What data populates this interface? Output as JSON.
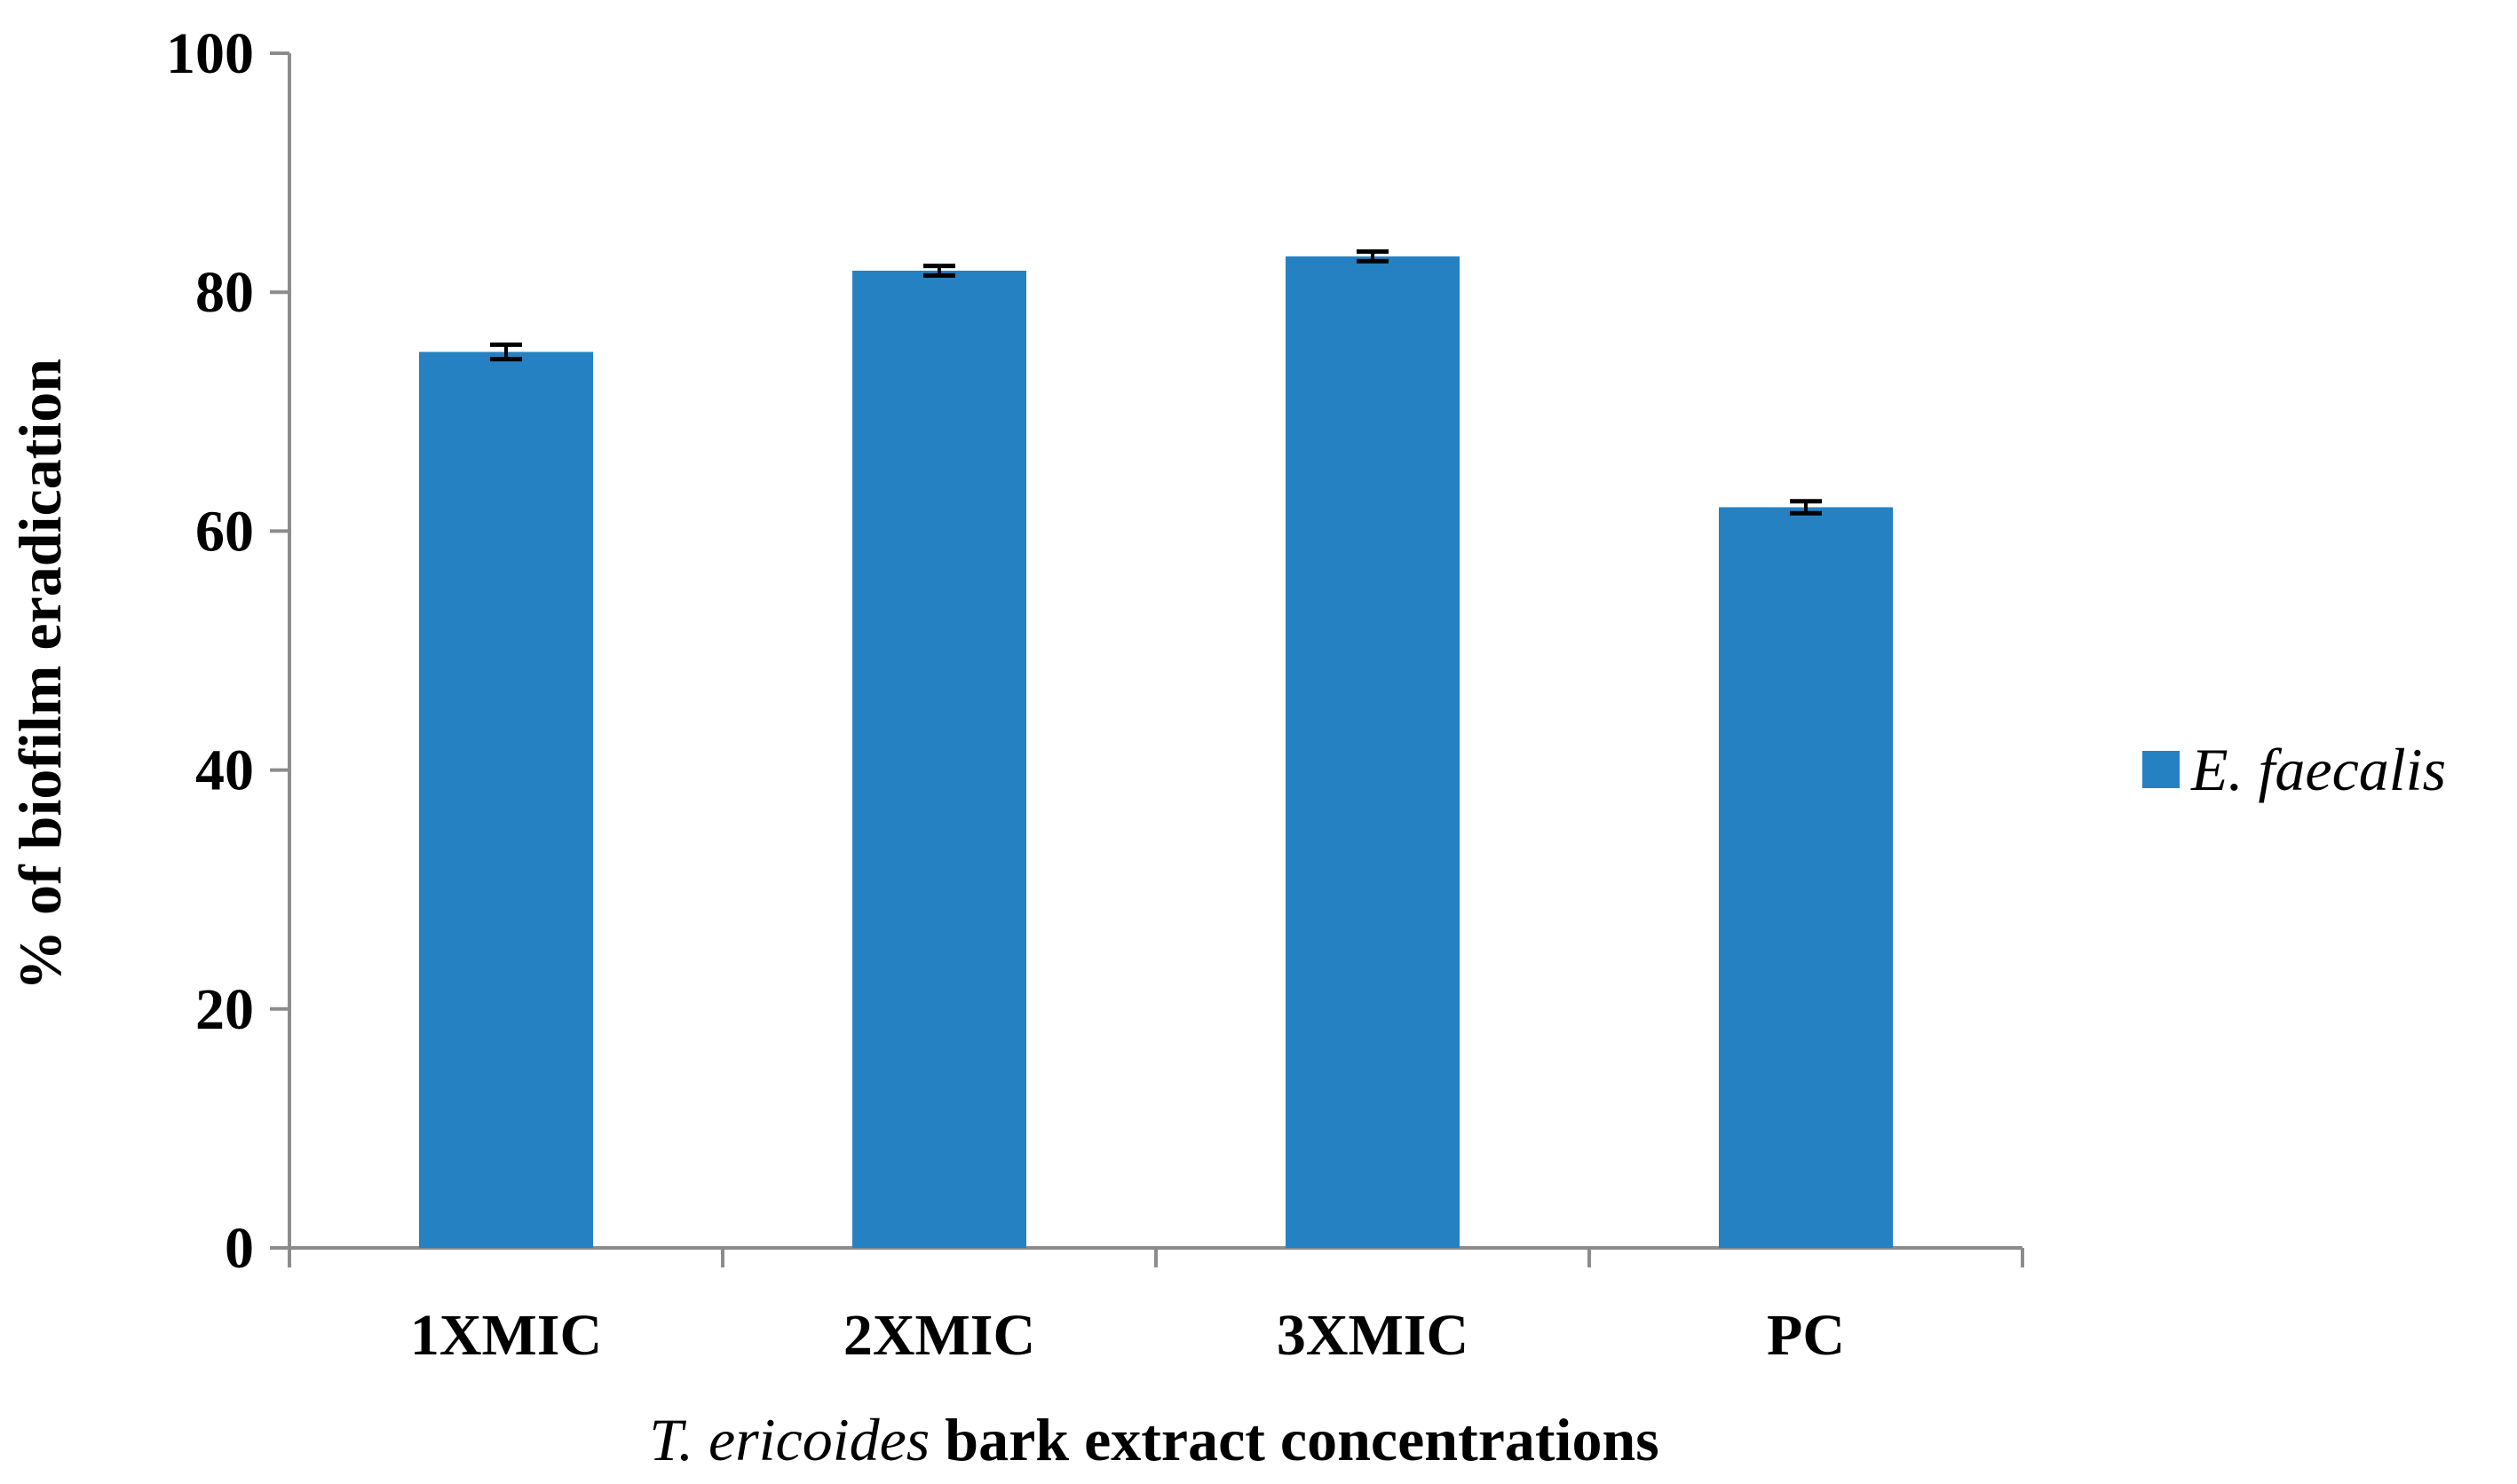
{
  "chart_data": {
    "type": "bar",
    "categories": [
      "1XMIC",
      "2XMIC",
      "3XMIC",
      "PC"
    ],
    "series": [
      {
        "name": "E. faecalis",
        "values": [
          75,
          81.8,
          83,
          62
        ],
        "errors": [
          0.6,
          0.4,
          0.4,
          0.5
        ],
        "color": "#2581C2"
      }
    ],
    "ylim": [
      0,
      100
    ],
    "yticks": [
      0,
      20,
      40,
      60,
      80,
      100
    ],
    "ylabel": "% of biofilm eradication",
    "xlabel_italic": "T. ericoides",
    "xlabel_rest": " bark extract concentrations",
    "legend_position": "right",
    "grid": false,
    "axis_color": "#8C8C8C"
  }
}
